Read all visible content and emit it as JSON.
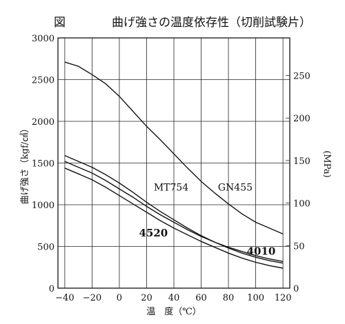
{
  "chart_data": {
    "type": "line",
    "title_prefix": "図",
    "title": "曲げ強さの温度依存性（切削試験片）",
    "xlabel": "温　度（℃）",
    "ylabel": "曲げ強さ（kgf/㎠）",
    "y2label": "(MPa)",
    "xlim": [
      -45,
      125
    ],
    "ylim": [
      0,
      3000
    ],
    "y2lim": [
      0,
      294.2
    ],
    "x_ticks": [
      -40,
      -20,
      0,
      20,
      40,
      60,
      80,
      100,
      120
    ],
    "x_tick_labels": [
      "−40",
      "−20",
      "0",
      "20",
      "40",
      "60",
      "80",
      "100",
      "120"
    ],
    "y_ticks": [
      0,
      500,
      1000,
      1500,
      2000,
      2500,
      3000
    ],
    "y_tick_labels": [
      "0",
      "500",
      "1000",
      "1500",
      "2000",
      "2500",
      "3000"
    ],
    "y2_ticks": [
      0,
      50,
      100,
      150,
      200,
      250
    ],
    "y2_tick_labels": [
      "0",
      "50",
      "100",
      "150",
      "200",
      "250"
    ],
    "grid": true,
    "series": [
      {
        "name": "GN455",
        "x": [
          -40,
          -30,
          -20,
          -10,
          0,
          10,
          20,
          30,
          40,
          50,
          60,
          70,
          80,
          90,
          100,
          110,
          120
        ],
        "values": [
          2710,
          2660,
          2560,
          2450,
          2300,
          2120,
          1940,
          1780,
          1610,
          1440,
          1280,
          1140,
          1010,
          890,
          790,
          720,
          650
        ]
      },
      {
        "name": "MT754",
        "x": [
          -40,
          -30,
          -20,
          -10,
          0,
          10,
          20,
          30,
          40,
          50,
          60,
          70,
          80,
          90,
          100,
          110,
          120
        ],
        "values": [
          1590,
          1520,
          1450,
          1360,
          1260,
          1150,
          1030,
          920,
          820,
          720,
          630,
          550,
          480,
          420,
          370,
          330,
          300
        ]
      },
      {
        "name": "4010",
        "x": [
          -40,
          -30,
          -20,
          -10,
          0,
          10,
          20,
          30,
          40,
          50,
          60,
          70,
          80,
          90,
          100,
          110,
          120
        ],
        "values": [
          1520,
          1450,
          1380,
          1290,
          1190,
          1090,
          980,
          880,
          790,
          700,
          620,
          550,
          490,
          440,
          390,
          350,
          320
        ]
      },
      {
        "name": "4520",
        "x": [
          -40,
          -30,
          -20,
          -10,
          0,
          10,
          20,
          30,
          40,
          50,
          60,
          70,
          80,
          90,
          100,
          110,
          120
        ],
        "values": [
          1440,
          1370,
          1300,
          1210,
          1110,
          1010,
          910,
          810,
          720,
          640,
          560,
          490,
          420,
          360,
          310,
          270,
          240
        ]
      }
    ],
    "labels": [
      {
        "series": "MT754",
        "text": "MT754",
        "x": 38,
        "y": 1170,
        "bold": false
      },
      {
        "series": "GN455",
        "text": "GN455",
        "x": 85,
        "y": 1170,
        "bold": false
      },
      {
        "series": "4520",
        "text": "4520",
        "x": 25,
        "y": 620,
        "bold": true
      },
      {
        "series": "4010",
        "text": "4010",
        "x": 104,
        "y": 400,
        "bold": true
      }
    ]
  }
}
